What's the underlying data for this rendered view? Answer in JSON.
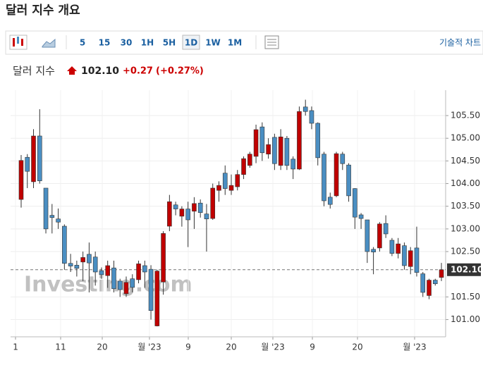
{
  "page_title": "달러 지수 개요",
  "toolbar": {
    "intervals": [
      "5",
      "15",
      "30",
      "1H",
      "5H",
      "1D",
      "1W",
      "1M"
    ],
    "selected": "1D",
    "tech_chart": "기술적 차트"
  },
  "quote": {
    "name": "달러 지수",
    "price": "102.10",
    "change": "+0.27",
    "change_pct": "(+0.27%)"
  },
  "chart_data": {
    "type": "candlestick",
    "up_color": "#c00000",
    "down_color": "#4a8ec2",
    "watermark": "Investing.com",
    "last_price": {
      "value": 102.1,
      "label": "102.10"
    },
    "xlim": [
      -1.71,
      68.68
    ],
    "xticks": [
      {
        "value": -0.91,
        "label": "1"
      },
      {
        "value": 6.39,
        "label": "11"
      },
      {
        "value": 13.12,
        "label": "20"
      },
      {
        "value": 20.76,
        "label": "월 '23"
      },
      {
        "value": 27.04,
        "label": "9"
      },
      {
        "value": 34.0,
        "label": "20"
      },
      {
        "value": 40.73,
        "label": "월 '23"
      },
      {
        "value": 47.12,
        "label": "9"
      },
      {
        "value": 54.42,
        "label": "20"
      },
      {
        "value": 63.66,
        "label": "월 '23"
      }
    ],
    "ylim": [
      100.62,
      106.06
    ],
    "yticks": [
      {
        "value": 101,
        "label": "101.00"
      },
      {
        "value": 101.5,
        "label": "101.50"
      },
      {
        "value": 102.5,
        "label": "102.50"
      },
      {
        "value": 103,
        "label": "103.00"
      },
      {
        "value": 103.5,
        "label": "103.50"
      },
      {
        "value": 104,
        "label": "104.00"
      },
      {
        "value": 104.5,
        "label": "104.50"
      },
      {
        "value": 105,
        "label": "105.00"
      },
      {
        "value": 105.5,
        "label": "105.50"
      }
    ],
    "grid": true,
    "open": [
      103.65,
      104.58,
      104.04,
      105.05,
      103.9,
      103.3,
      103.22,
      103.06,
      102.24,
      102.2,
      102.27,
      102.44,
      102.38,
      102.08,
      101.97,
      102.14,
      101.85,
      101.57,
      101.9,
      101.88,
      102.19,
      102.11,
      100.86,
      101.83,
      103.06,
      103.53,
      103.28,
      103.44,
      103.39,
      103.57,
      103.33,
      103.23,
      103.85,
      104.23,
      103.85,
      103.93,
      104.2,
      104.4,
      104.6,
      105.25,
      104.65,
      105.02,
      104.4,
      105.0,
      104.54,
      104.32,
      105.69,
      105.61,
      105.33,
      104.65,
      103.7,
      103.73,
      104.65,
      104.41,
      103.89,
      103.31,
      103.2,
      102.55,
      102.58,
      103.12,
      102.75,
      102.46,
      102.63,
      102.17,
      102.58,
      102.01,
      101.53,
      101.87,
      101.93
    ],
    "high": [
      104.63,
      104.65,
      105.2,
      105.64,
      103.9,
      103.55,
      103.45,
      103.1,
      102.45,
      102.3,
      102.5,
      102.7,
      102.5,
      102.15,
      102.3,
      102.3,
      101.9,
      101.95,
      102.0,
      102.3,
      102.3,
      102.2,
      102.1,
      102.95,
      103.75,
      103.6,
      103.5,
      103.6,
      103.7,
      103.65,
      103.55,
      104.0,
      104.05,
      104.4,
      104.2,
      104.3,
      104.6,
      104.7,
      105.3,
      105.35,
      105.0,
      105.1,
      105.2,
      105.05,
      104.6,
      105.7,
      105.85,
      105.7,
      105.35,
      104.7,
      103.8,
      104.7,
      104.7,
      104.45,
      103.9,
      103.35,
      103.2,
      102.6,
      103.15,
      103.3,
      102.8,
      102.8,
      102.7,
      102.6,
      103.05,
      102.05,
      101.9,
      101.9,
      102.25
    ],
    "low": [
      103.47,
      103.9,
      103.9,
      104.0,
      102.9,
      102.9,
      103.0,
      102.1,
      102.05,
      101.95,
      101.85,
      101.6,
      101.75,
      101.9,
      101.7,
      101.6,
      101.5,
      101.5,
      101.6,
      101.8,
      101.7,
      101.0,
      100.85,
      101.55,
      102.95,
      103.3,
      103.05,
      102.6,
      103.0,
      103.25,
      102.5,
      103.2,
      103.6,
      103.75,
      103.75,
      103.85,
      104.1,
      104.35,
      104.45,
      104.5,
      104.55,
      104.3,
      104.3,
      104.3,
      104.1,
      104.3,
      105.5,
      105.2,
      104.4,
      103.5,
      103.45,
      103.7,
      104.3,
      103.6,
      103.0,
      103.0,
      102.25,
      102.0,
      102.5,
      102.8,
      102.4,
      102.35,
      102.1,
      102.0,
      101.95,
      101.5,
      101.45,
      101.75,
      101.85
    ],
    "close": [
      104.51,
      104.27,
      105.05,
      104.06,
      103.0,
      103.25,
      103.15,
      102.24,
      102.18,
      102.13,
      102.37,
      102.25,
      102.05,
      101.99,
      102.19,
      101.68,
      101.66,
      101.82,
      101.71,
      102.23,
      102.05,
      101.2,
      102.07,
      102.9,
      103.6,
      103.44,
      103.44,
      103.2,
      103.56,
      103.36,
      103.22,
      103.9,
      103.96,
      103.89,
      103.96,
      104.2,
      104.55,
      104.65,
      105.19,
      104.68,
      104.86,
      104.44,
      105.03,
      104.4,
      104.32,
      105.59,
      105.59,
      105.33,
      104.57,
      103.62,
      103.54,
      104.66,
      104.44,
      103.73,
      103.26,
      103.23,
      102.5,
      102.49,
      103.11,
      102.89,
      102.46,
      102.67,
      102.19,
      102.52,
      102.04,
      101.6,
      101.87,
      101.79,
      102.1
    ]
  }
}
